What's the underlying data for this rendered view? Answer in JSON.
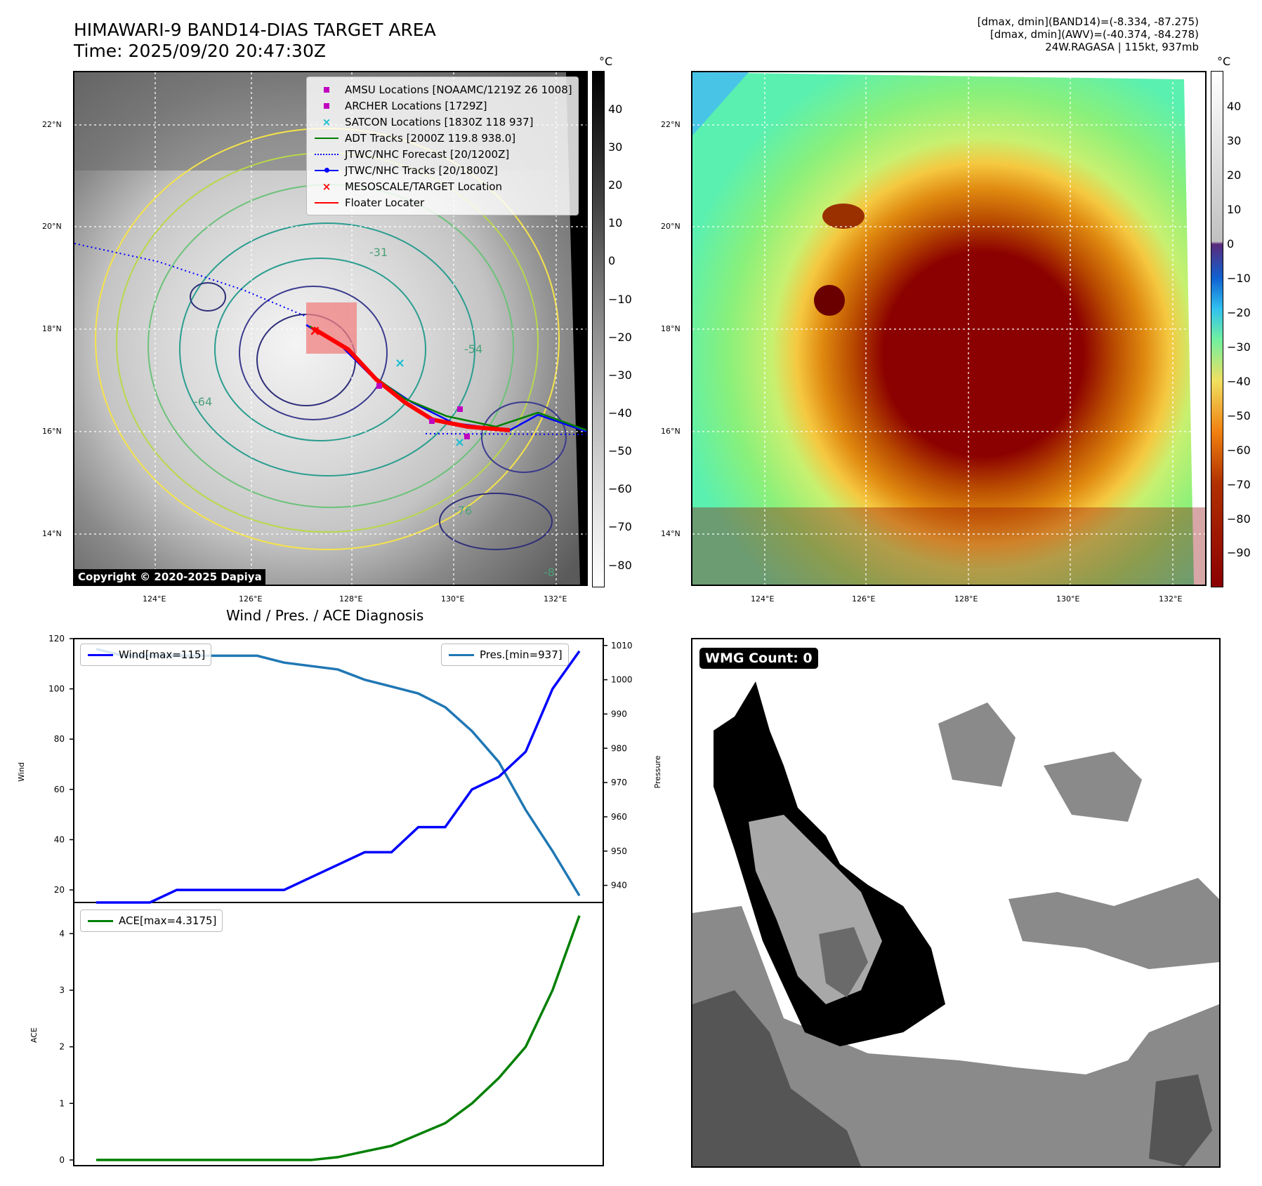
{
  "header": {
    "title_line1": "HIMAWARI-9 BAND14-DIAS TARGET AREA",
    "title_line2": "Time: 2025/09/20 20:47:30Z",
    "info_line1": "[dmax, dmin](BAND14)=(-8.334, -87.275)",
    "info_line2": "[dmax, dmin](AWV)=(-40.374, -84.278)",
    "info_line3": "24W.RAGASA | 115kt, 937mb"
  },
  "map": {
    "lat_labels": [
      "22°N",
      "20°N",
      "18°N",
      "16°N",
      "14°N"
    ],
    "lon_labels": [
      "124°E",
      "126°E",
      "128°E",
      "130°E",
      "132°E"
    ],
    "copyright": "Copyright © 2020-2025 Dapiya",
    "contour_labels": [
      "-31",
      "-54",
      "-64",
      "-76",
      "-8"
    ],
    "legend": [
      {
        "label": "AMSU Locations [NOAAMC/1219Z 26 1008]",
        "marker": "square",
        "color": "#c000c0"
      },
      {
        "label": "ARCHER Locations [1729Z]",
        "marker": "square",
        "color": "#c000c0"
      },
      {
        "label": "SATCON Locations [1830Z 118 937]",
        "marker": "x",
        "color": "#17becf"
      },
      {
        "label": "ADT Tracks [2000Z 119.8 938.0]",
        "marker": "line",
        "color": "#008000"
      },
      {
        "label": "JTWC/NHC Forecast [20/1200Z]",
        "marker": "dotted",
        "color": "#0000ff"
      },
      {
        "label": "JTWC/NHC Tracks [20/1800Z]",
        "marker": "line-dot",
        "color": "#0000ff"
      },
      {
        "label": "MESOSCALE/TARGET Location",
        "marker": "x",
        "color": "#ff0000"
      },
      {
        "label": "Floater Locater",
        "marker": "line",
        "color": "#ff0000"
      }
    ],
    "colorbar_left": {
      "unit": "°C",
      "ticks": [
        "40",
        "30",
        "20",
        "10",
        "0",
        "−10",
        "−20",
        "−30",
        "−40",
        "−50",
        "−60",
        "−70",
        "−80"
      ]
    },
    "colorbar_right": {
      "unit": "°C",
      "ticks": [
        "40",
        "30",
        "20",
        "10",
        "0",
        "−10",
        "−20",
        "−30",
        "−40",
        "−50",
        "−60",
        "−70",
        "−80",
        "−90"
      ]
    }
  },
  "diag": {
    "title": "Wind / Pres. / ACE Diagnosis",
    "wind_label": "Wind",
    "pressure_label": "Pressure",
    "ace_label": "ACE",
    "wind_legend": "Wind[max=115]",
    "pres_legend": "Pres.[min=937]",
    "ace_legend": "ACE[max=4.3175]",
    "wind_ticks": [
      "120",
      "100",
      "80",
      "60",
      "40",
      "20"
    ],
    "pres_ticks": [
      "1010",
      "1000",
      "990",
      "980",
      "970",
      "960",
      "950",
      "940"
    ],
    "ace_ticks": [
      "4",
      "3",
      "2",
      "1",
      "0"
    ]
  },
  "wmg": {
    "label": "WMG Count: 0"
  },
  "chart_data": [
    {
      "type": "line",
      "title": "Wind / Pres. / ACE Diagnosis",
      "ylabel": "Wind",
      "y2label": "Pressure",
      "x": [
        0,
        1,
        2,
        3,
        4,
        5,
        6,
        7,
        8,
        9,
        10,
        11,
        12,
        13,
        14,
        15,
        16,
        17,
        18
      ],
      "ylim": [
        15,
        120
      ],
      "y2lim": [
        935,
        1012
      ],
      "series": [
        {
          "name": "Wind[max=115]",
          "axis": "left",
          "color": "#0000ff",
          "values": [
            15,
            15,
            15,
            20,
            20,
            20,
            20,
            20,
            25,
            30,
            35,
            35,
            45,
            45,
            60,
            65,
            75,
            100,
            115
          ]
        },
        {
          "name": "Pres.[min=937]",
          "axis": "right",
          "color": "#1f77b4",
          "values": [
            1009,
            1007,
            1007,
            1007,
            1007,
            1007,
            1007,
            1005,
            1004,
            1003,
            1000,
            998,
            996,
            992,
            985,
            976,
            962,
            950,
            937
          ]
        }
      ]
    },
    {
      "type": "line",
      "ylabel": "ACE",
      "x": [
        0,
        1,
        2,
        3,
        4,
        5,
        6,
        7,
        8,
        9,
        10,
        11,
        12,
        13,
        14,
        15,
        16,
        17,
        18
      ],
      "ylim": [
        -0.1,
        4.55
      ],
      "series": [
        {
          "name": "ACE[max=4.3175]",
          "color": "#008000",
          "values": [
            0,
            0,
            0,
            0,
            0,
            0,
            0,
            0,
            0,
            0.05,
            0.15,
            0.25,
            0.45,
            0.65,
            1.0,
            1.45,
            2.0,
            3.0,
            4.3175
          ]
        }
      ]
    }
  ]
}
